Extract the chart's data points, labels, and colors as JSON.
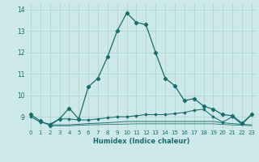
{
  "xlabel": "Humidex (Indice chaleur)",
  "background_color": "#cce8e8",
  "grid_color": "#aad0d0",
  "line_color": "#1a6b6b",
  "xlim": [
    -0.5,
    23.5
  ],
  "ylim": [
    8.4,
    14.3
  ],
  "xticks": [
    0,
    1,
    2,
    3,
    4,
    5,
    6,
    7,
    8,
    9,
    10,
    11,
    12,
    13,
    14,
    15,
    16,
    17,
    18,
    19,
    20,
    21,
    22,
    23
  ],
  "yticks": [
    9,
    10,
    11,
    12,
    13,
    14
  ],
  "series1_x": [
    0,
    1,
    2,
    3,
    4,
    5,
    6,
    7,
    8,
    9,
    10,
    11,
    12,
    13,
    14,
    15,
    16,
    17,
    18,
    19,
    20,
    21,
    22,
    23
  ],
  "series1_y": [
    9.1,
    8.8,
    8.6,
    8.9,
    9.4,
    8.9,
    10.4,
    10.8,
    11.8,
    13.0,
    13.85,
    13.4,
    13.3,
    12.0,
    10.8,
    10.45,
    9.75,
    9.85,
    9.5,
    9.35,
    9.1,
    9.05,
    8.7,
    9.1
  ],
  "series2_x": [
    0,
    1,
    2,
    3,
    4,
    5,
    6,
    7,
    8,
    9,
    10,
    11,
    12,
    13,
    14,
    15,
    16,
    17,
    18,
    19,
    20,
    21,
    22,
    23
  ],
  "series2_y": [
    9.0,
    8.75,
    8.65,
    8.9,
    8.9,
    8.85,
    8.85,
    8.9,
    8.95,
    9.0,
    9.0,
    9.05,
    9.1,
    9.1,
    9.1,
    9.15,
    9.2,
    9.3,
    9.35,
    9.0,
    8.75,
    9.0,
    8.65,
    9.1
  ],
  "series3_x": [
    2,
    3,
    4,
    5,
    6,
    7,
    8,
    9,
    10,
    11,
    12,
    13,
    14,
    15,
    16,
    17,
    18,
    19,
    20,
    21,
    22,
    23
  ],
  "series3_y": [
    8.62,
    8.62,
    8.62,
    8.65,
    8.68,
    8.7,
    8.72,
    8.75,
    8.78,
    8.78,
    8.78,
    8.78,
    8.78,
    8.78,
    8.78,
    8.78,
    8.78,
    8.78,
    8.72,
    8.68,
    8.65,
    8.62
  ],
  "series4_x": [
    2,
    3,
    4,
    5,
    6,
    7,
    8,
    9,
    10,
    11,
    12,
    13,
    14,
    15,
    16,
    17,
    18,
    19,
    20,
    21,
    22,
    23
  ],
  "series4_y": [
    8.58,
    8.58,
    8.58,
    8.6,
    8.62,
    8.63,
    8.64,
    8.65,
    8.66,
    8.67,
    8.67,
    8.67,
    8.67,
    8.67,
    8.67,
    8.67,
    8.67,
    8.67,
    8.64,
    8.62,
    8.6,
    8.58
  ]
}
